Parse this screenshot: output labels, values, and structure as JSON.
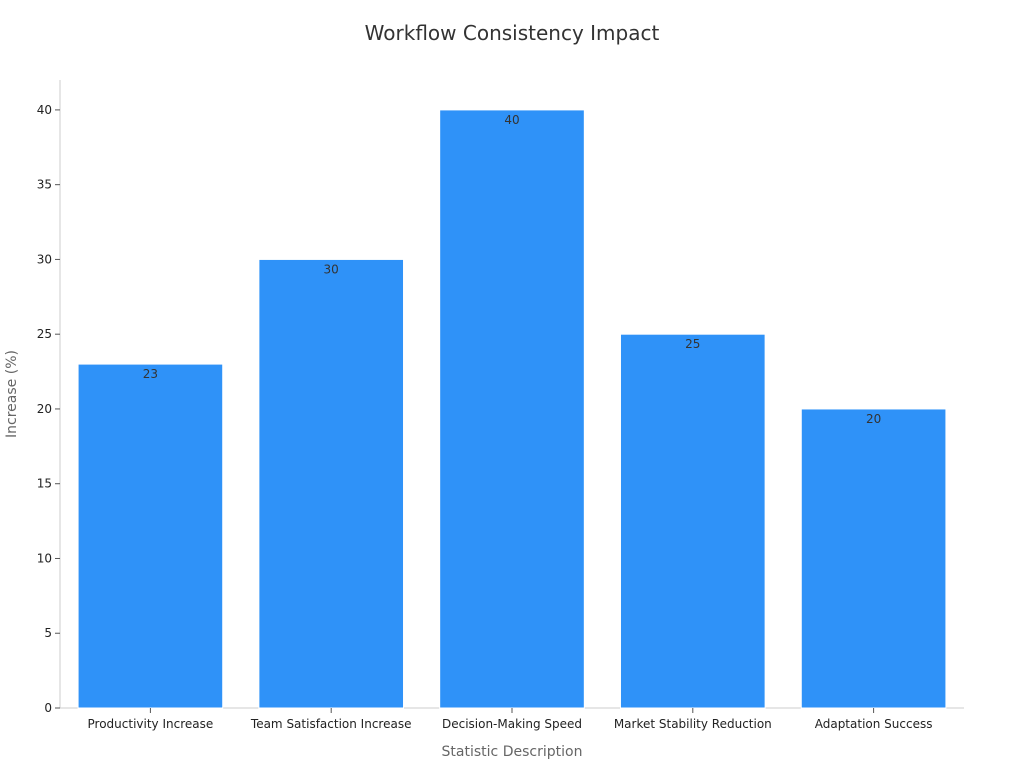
{
  "chart_data": {
    "type": "bar",
    "title": "Workflow Consistency Impact",
    "xlabel": "Statistic Description",
    "ylabel": "Increase (%)",
    "categories": [
      "Productivity Increase",
      "Team Satisfaction Increase",
      "Decision-Making Speed",
      "Market Stability Reduction",
      "Adaptation Success"
    ],
    "values": [
      23,
      30,
      40,
      25,
      20
    ],
    "ylim": [
      0,
      42
    ],
    "yticks": [
      0,
      5,
      10,
      15,
      20,
      25,
      30,
      35,
      40
    ],
    "bar_color": "#2f92f8",
    "grid": false,
    "legend": "none"
  }
}
